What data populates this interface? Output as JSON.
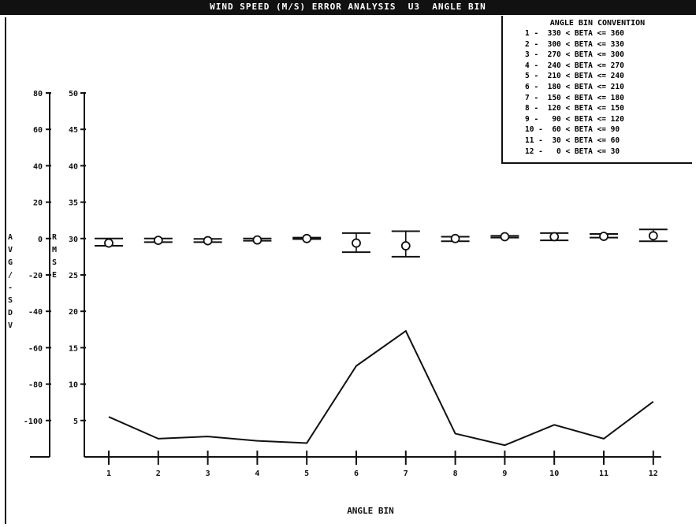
{
  "chart_data": {
    "type": "line",
    "title": "WIND SPEED (M/S) ERROR ANALYSIS  U3  ANGLE BIN",
    "xlabel": "ANGLE BIN",
    "left_axis_label": "AVG/-SDV",
    "right_axis_label": "RMSE",
    "categories": [
      "1",
      "2",
      "3",
      "4",
      "5",
      "6",
      "7",
      "8",
      "9",
      "10",
      "11",
      "12"
    ],
    "left_axis": {
      "ticks": [
        "80",
        "60",
        "40",
        "20",
        "0",
        "-20",
        "-40",
        "-60",
        "-80",
        "-100"
      ],
      "ylim": [
        -120,
        80
      ]
    },
    "right_axis": {
      "ticks": [
        "50",
        "45",
        "40",
        "35",
        "30",
        "25",
        "20",
        "15",
        "10",
        "5"
      ],
      "ylim": [
        0,
        50
      ]
    },
    "series": [
      {
        "kind": "errorbar",
        "mean": [
          -2.5,
          -1.0,
          -1.2,
          -0.8,
          0.0,
          -2.5,
          -4.0,
          0.0,
          1.0,
          1.0,
          1.2,
          1.5
        ],
        "upper": [
          0.0,
          0.0,
          -0.2,
          0.0,
          0.5,
          3.0,
          4.0,
          1.0,
          1.5,
          3.0,
          2.5,
          5.0
        ],
        "lower": [
          -4.0,
          -2.0,
          -2.0,
          -1.2,
          -0.3,
          -7.5,
          -10.0,
          -1.5,
          0.5,
          -1.0,
          0.5,
          -1.5
        ]
      },
      {
        "kind": "line",
        "values": [
          5.5,
          2.5,
          2.8,
          2.2,
          1.9,
          12.5,
          17.3,
          3.2,
          1.6,
          4.4,
          2.5,
          7.6
        ]
      }
    ],
    "legend": {
      "title": "ANGLE BIN CONVENTION",
      "entries": [
        "1 -  330 < BETA <= 360",
        "2 -  300 < BETA <= 330",
        "3 -  270 < BETA <= 300",
        "4 -  240 < BETA <= 270",
        "5 -  210 < BETA <= 240",
        "6 -  180 < BETA <= 210",
        "7 -  150 < BETA <= 180",
        "8 -  120 < BETA <= 150",
        "9 -   90 < BETA <= 120",
        "10 -  60 < BETA <= 90",
        "11 -  30 < BETA <= 60",
        "12 -   0 < BETA <= 30"
      ]
    }
  }
}
